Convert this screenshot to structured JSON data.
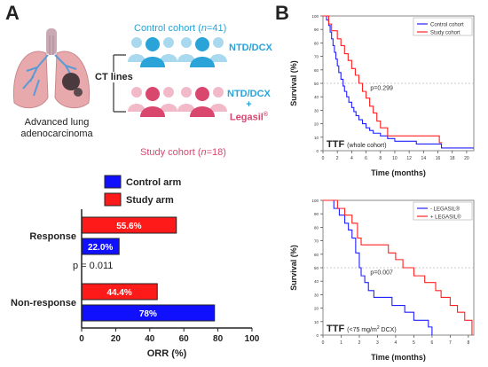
{
  "panel_a": {
    "letter": "A",
    "lung_caption_line1": "Advanced lung",
    "lung_caption_line2": "adenocarcinoma",
    "ct_lines": "CT lines",
    "control_cohort_prefix": "Control cohort (",
    "control_cohort_n": "n",
    "control_cohort_suffix": "=41)",
    "study_cohort_prefix": "Study cohort (",
    "study_cohort_n": "n",
    "study_cohort_suffix": "=18)",
    "control_treatment": "NTD/DCX",
    "study_treatment_line1": "NTD/DCX",
    "study_treatment_plus": "+",
    "study_treatment_line2": "Legasil",
    "study_treatment_reg": "®",
    "p_value": "p = 0.011"
  },
  "panel_b": {
    "letter": "B"
  },
  "colors": {
    "control_blue": "#1010ff",
    "study_red": "#ff1a1a",
    "teal": "#2aa3d8",
    "pink": "#d9476f"
  },
  "chart_data": [
    {
      "type": "bar",
      "orientation": "horizontal",
      "xlabel": "ORR (%)",
      "xlim": [
        0,
        100
      ],
      "xticks": [
        "0",
        "20",
        "40",
        "60",
        "80",
        "100"
      ],
      "categories": [
        "Response",
        "Non-response"
      ],
      "legend_position": "top",
      "series": [
        {
          "name": "Control arm",
          "color": "#1010ff",
          "values": [
            22.0,
            78
          ],
          "labels": [
            "22.0%",
            "78%"
          ]
        },
        {
          "name": "Study arm",
          "color": "#ff1a1a",
          "values": [
            55.6,
            44.4
          ],
          "labels": [
            "55.6%",
            "44.4%"
          ]
        }
      ]
    },
    {
      "type": "line",
      "step": true,
      "annotation": "TTF",
      "annotation_sub": "(whole cohort)",
      "ylabel": "Survival (%)",
      "xlabel": "Time (months)",
      "xlim": [
        0,
        21
      ],
      "ylim": [
        0,
        100
      ],
      "xticks": [
        0,
        2,
        4,
        6,
        8,
        10,
        12,
        14,
        16,
        18,
        20
      ],
      "yticks": [
        0,
        10,
        20,
        30,
        40,
        50,
        60,
        70,
        80,
        90,
        100
      ],
      "p_value": "p=0.299",
      "legend_position": "top-right",
      "series": [
        {
          "name": "Control cohort",
          "color": "#2020ff",
          "points": [
            [
              0,
              100
            ],
            [
              0.5,
              97
            ],
            [
              0.8,
              93
            ],
            [
              1,
              88
            ],
            [
              1.2,
              83
            ],
            [
              1.4,
              78
            ],
            [
              1.6,
              73
            ],
            [
              1.8,
              68
            ],
            [
              2,
              63
            ],
            [
              2.2,
              58
            ],
            [
              2.5,
              53
            ],
            [
              2.8,
              48
            ],
            [
              3,
              44
            ],
            [
              3.3,
              40
            ],
            [
              3.6,
              36
            ],
            [
              4,
              32
            ],
            [
              4.3,
              29
            ],
            [
              4.6,
              26
            ],
            [
              5,
              23
            ],
            [
              5.5,
              20
            ],
            [
              6,
              17
            ],
            [
              6.5,
              15
            ],
            [
              7,
              13
            ],
            [
              8,
              11
            ],
            [
              9,
              9
            ],
            [
              10,
              7
            ],
            [
              12,
              7
            ],
            [
              13,
              5
            ],
            [
              16,
              5
            ],
            [
              16.5,
              2
            ],
            [
              21,
              2
            ]
          ]
        },
        {
          "name": "Study cohort",
          "color": "#ff2020",
          "points": [
            [
              0,
              100
            ],
            [
              0.8,
              94
            ],
            [
              1.2,
              89
            ],
            [
              2,
              83
            ],
            [
              2.5,
              78
            ],
            [
              3,
              72
            ],
            [
              3.5,
              67
            ],
            [
              4,
              61
            ],
            [
              4.5,
              56
            ],
            [
              5,
              50
            ],
            [
              5.5,
              44
            ],
            [
              6,
              39
            ],
            [
              6.5,
              33
            ],
            [
              7,
              28
            ],
            [
              7.5,
              22
            ],
            [
              8,
              17
            ],
            [
              9,
              11
            ],
            [
              16,
              11
            ],
            [
              16.2,
              6
            ],
            [
              16.6,
              6
            ]
          ]
        }
      ]
    },
    {
      "type": "line",
      "step": true,
      "annotation": "TTF",
      "annotation_sub_prefix": "(<75 mg/m",
      "annotation_sub_sup": "2",
      "annotation_sub_suffix": " DCX)",
      "ylabel": "Survival (%)",
      "xlabel": "Time (months)",
      "xlim": [
        0,
        8.3
      ],
      "ylim": [
        0,
        100
      ],
      "xticks": [
        0,
        1,
        2,
        3,
        4,
        5,
        6,
        7,
        8
      ],
      "yticks": [
        0,
        10,
        20,
        30,
        40,
        50,
        60,
        70,
        80,
        90,
        100
      ],
      "p_value": "p=0.007",
      "legend_position": "top-right",
      "series": [
        {
          "name": "- LEGASIL®",
          "color": "#2020ff",
          "points": [
            [
              0,
              100
            ],
            [
              0.6,
              94
            ],
            [
              0.9,
              89
            ],
            [
              1.2,
              83
            ],
            [
              1.4,
              78
            ],
            [
              1.6,
              72
            ],
            [
              1.8,
              61
            ],
            [
              2,
              50
            ],
            [
              2.1,
              44
            ],
            [
              2.3,
              39
            ],
            [
              2.5,
              33
            ],
            [
              2.8,
              28
            ],
            [
              3.5,
              28
            ],
            [
              3.8,
              22
            ],
            [
              4.5,
              17
            ],
            [
              5,
              11
            ],
            [
              5.6,
              11
            ],
            [
              5.8,
              6
            ],
            [
              6,
              6
            ],
            [
              6,
              0
            ]
          ]
        },
        {
          "name": "+ LEGASIL®",
          "color": "#ff2020",
          "points": [
            [
              0,
              100
            ],
            [
              0.8,
              94
            ],
            [
              1.2,
              89
            ],
            [
              1.6,
              83
            ],
            [
              1.9,
              72
            ],
            [
              2.1,
              67
            ],
            [
              3.3,
              67
            ],
            [
              3.6,
              61
            ],
            [
              4,
              56
            ],
            [
              4.4,
              50
            ],
            [
              5,
              44
            ],
            [
              5.6,
              39
            ],
            [
              6.2,
              33
            ],
            [
              6.5,
              28
            ],
            [
              7,
              22
            ],
            [
              7.4,
              17
            ],
            [
              7.8,
              11
            ],
            [
              8.2,
              6
            ],
            [
              8.2,
              0
            ]
          ]
        }
      ]
    }
  ]
}
